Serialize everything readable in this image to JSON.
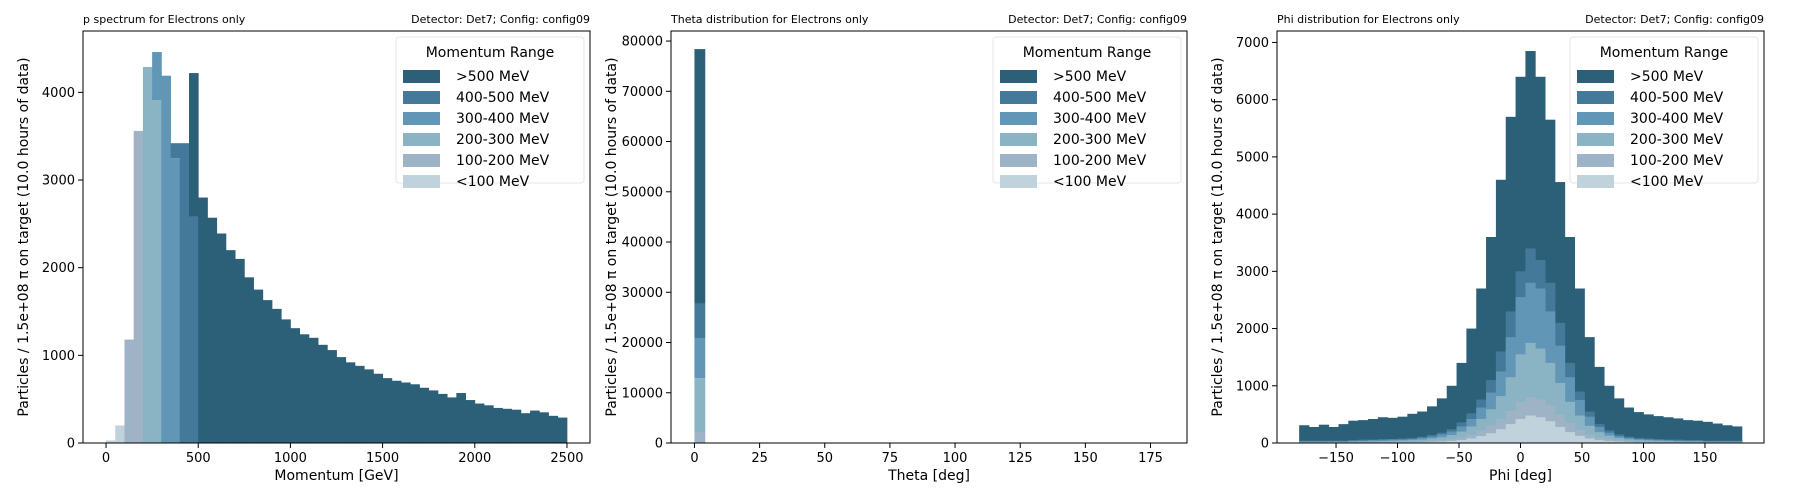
{
  "colors": {
    ">500 MeV": "#2c5f78",
    "400-500 MeV": "#44799a",
    "300-400 MeV": "#6196b6",
    "200-300 MeV": "#8ab3c4",
    "100-200 MeV": "#9fb3c6",
    "<100 MeV": "#c0d2dc"
  },
  "chart_data": [
    {
      "type": "bar",
      "stacked": true,
      "title_left": "p spectrum for Electrons only",
      "title_right": "Detector: Det7; Config: config09",
      "xlabel": "Momentum [GeV]",
      "ylabel": "Particles / 1.5e+08 π on target (10.0 hours of data)",
      "xlim": [
        -125,
        2625
      ],
      "ylim": [
        0,
        4700
      ],
      "xticks": [
        0,
        500,
        1000,
        1500,
        2000,
        2500
      ],
      "yticks": [
        0,
        1000,
        2000,
        3000,
        4000
      ],
      "legend": {
        "title": "Momentum Range",
        "position": "top-right"
      },
      "bin_width": 50,
      "bin_starts": [
        0,
        50,
        100,
        150,
        200,
        250,
        300,
        350,
        400,
        450,
        500,
        550,
        600,
        650,
        700,
        750,
        800,
        850,
        900,
        950,
        1000,
        1050,
        1100,
        1150,
        1200,
        1250,
        1300,
        1350,
        1400,
        1450,
        1500,
        1550,
        1600,
        1650,
        1700,
        1750,
        1800,
        1850,
        1900,
        1950,
        2000,
        2050,
        2100,
        2150,
        2200,
        2250,
        2300,
        2350,
        2400,
        2450
      ],
      "series": [
        {
          "name": "<100 MeV",
          "values": [
            30,
            200,
            0,
            0,
            0,
            0,
            0,
            0,
            0,
            0,
            0,
            0,
            0,
            0,
            0,
            0,
            0,
            0,
            0,
            0,
            0,
            0,
            0,
            0,
            0,
            0,
            0,
            0,
            0,
            0,
            0,
            0,
            0,
            0,
            0,
            0,
            0,
            0,
            0,
            0,
            0,
            0,
            0,
            0,
            0,
            0,
            0,
            0,
            0,
            0
          ]
        },
        {
          "name": "100-200 MeV",
          "values": [
            0,
            0,
            1180,
            3560,
            0,
            0,
            0,
            0,
            0,
            0,
            0,
            0,
            0,
            0,
            0,
            0,
            0,
            0,
            0,
            0,
            0,
            0,
            0,
            0,
            0,
            0,
            0,
            0,
            0,
            0,
            0,
            0,
            0,
            0,
            0,
            0,
            0,
            0,
            0,
            0,
            0,
            0,
            0,
            0,
            0,
            0,
            0,
            0,
            0,
            0
          ]
        },
        {
          "name": "200-300 MeV",
          "values": [
            0,
            0,
            0,
            0,
            4290,
            3910,
            0,
            0,
            0,
            0,
            0,
            0,
            0,
            0,
            0,
            0,
            0,
            0,
            0,
            0,
            0,
            0,
            0,
            0,
            0,
            0,
            0,
            0,
            0,
            0,
            0,
            0,
            0,
            0,
            0,
            0,
            0,
            0,
            0,
            0,
            0,
            0,
            0,
            0,
            0,
            0,
            0,
            0,
            0,
            0
          ]
        },
        {
          "name": "300-400 MeV",
          "values": [
            0,
            0,
            0,
            0,
            0,
            550,
            4190,
            3250,
            0,
            0,
            0,
            0,
            0,
            0,
            0,
            0,
            0,
            0,
            0,
            0,
            0,
            0,
            0,
            0,
            0,
            0,
            0,
            0,
            0,
            0,
            0,
            0,
            0,
            0,
            0,
            0,
            0,
            0,
            0,
            0,
            0,
            0,
            0,
            0,
            0,
            0,
            0,
            0,
            0,
            0
          ]
        },
        {
          "name": "400-500 MeV",
          "values": [
            0,
            0,
            0,
            0,
            0,
            0,
            0,
            170,
            3420,
            2580,
            0,
            0,
            0,
            0,
            0,
            0,
            0,
            0,
            0,
            0,
            0,
            0,
            0,
            0,
            0,
            0,
            0,
            0,
            0,
            0,
            0,
            0,
            0,
            0,
            0,
            0,
            0,
            0,
            0,
            0,
            0,
            0,
            0,
            0,
            0,
            0,
            0,
            0,
            0,
            0
          ]
        },
        {
          "name": ">500 MeV",
          "values": [
            0,
            0,
            0,
            0,
            0,
            0,
            0,
            0,
            0,
            1640,
            2800,
            2570,
            2390,
            2200,
            2100,
            1890,
            1750,
            1630,
            1530,
            1410,
            1310,
            1240,
            1200,
            1120,
            1060,
            980,
            920,
            880,
            840,
            790,
            740,
            710,
            690,
            670,
            630,
            600,
            560,
            520,
            570,
            490,
            450,
            430,
            400,
            390,
            380,
            340,
            370,
            350,
            310,
            290
          ]
        }
      ]
    },
    {
      "type": "bar",
      "stacked": true,
      "title_left": "Theta distribution for Electrons only",
      "title_right": "Detector: Det7; Config: config09",
      "xlabel": "Theta [deg]",
      "ylabel": "Particles / 1.5e+08 π on target (10.0 hours of data)",
      "xlim": [
        -9,
        189
      ],
      "ylim": [
        0,
        82000
      ],
      "xticks": [
        0,
        25,
        50,
        75,
        100,
        125,
        150,
        175
      ],
      "yticks": [
        0,
        10000,
        20000,
        30000,
        40000,
        50000,
        60000,
        70000,
        80000
      ],
      "legend": {
        "title": "Momentum Range",
        "position": "top-right"
      },
      "bin_width": 4,
      "bin_starts": [
        0
      ],
      "series": [
        {
          "name": "<100 MeV",
          "values": [
            100
          ]
        },
        {
          "name": "100-200 MeV",
          "values": [
            2000
          ]
        },
        {
          "name": "200-300 MeV",
          "values": [
            10800
          ]
        },
        {
          "name": "300-400 MeV",
          "values": [
            8000
          ]
        },
        {
          "name": "400-500 MeV",
          "values": [
            6800
          ]
        },
        {
          "name": ">500 MeV",
          "values": [
            50700
          ]
        }
      ]
    },
    {
      "type": "bar",
      "stacked": false,
      "title_left": "Phi distribution for Electrons only",
      "title_right": "Detector: Det7; Config: config09",
      "xlabel": "Phi [deg]",
      "ylabel": "Particles / 1.5e+08 π on target (10.0 hours of data)",
      "xlim": [
        -198,
        198
      ],
      "ylim": [
        0,
        7200
      ],
      "xticks": [
        -150,
        -100,
        -50,
        0,
        50,
        100,
        150
      ],
      "yticks": [
        0,
        1000,
        2000,
        3000,
        4000,
        5000,
        6000,
        7000
      ],
      "legend": {
        "title": "Momentum Range",
        "position": "top-right"
      },
      "bin_width": 8,
      "bin_starts": [
        -180,
        -172,
        -164,
        -156,
        -148,
        -140,
        -132,
        -124,
        -116,
        -108,
        -100,
        -92,
        -84,
        -76,
        -68,
        -60,
        -52,
        -44,
        -36,
        -28,
        -20,
        -12,
        -4,
        4,
        12,
        20,
        28,
        36,
        44,
        52,
        60,
        68,
        76,
        84,
        92,
        100,
        108,
        116,
        124,
        132,
        140,
        148,
        156,
        164,
        172
      ],
      "series": [
        {
          "name": ">500 MeV",
          "values": [
            310,
            280,
            320,
            280,
            330,
            390,
            400,
            420,
            450,
            440,
            460,
            510,
            550,
            640,
            780,
            1000,
            1400,
            2000,
            2700,
            3600,
            4600,
            5700,
            6400,
            6850,
            6400,
            5650,
            4560,
            3600,
            2700,
            1850,
            1330,
            1000,
            780,
            620,
            540,
            500,
            470,
            450,
            430,
            400,
            390,
            370,
            340,
            310,
            290
          ]
        },
        {
          "name": "400-500 MeV",
          "values": [
            40,
            40,
            40,
            40,
            40,
            50,
            60,
            60,
            70,
            70,
            80,
            90,
            110,
            140,
            180,
            240,
            360,
            520,
            760,
            1100,
            1600,
            2300,
            3000,
            3400,
            3200,
            2800,
            2100,
            1400,
            900,
            550,
            330,
            220,
            150,
            110,
            90,
            80,
            70,
            60,
            60,
            50,
            50,
            40,
            40,
            40,
            40
          ]
        },
        {
          "name": "300-400 MeV",
          "values": [
            30,
            30,
            30,
            30,
            30,
            40,
            40,
            50,
            50,
            60,
            60,
            70,
            90,
            110,
            150,
            200,
            290,
            420,
            620,
            880,
            1250,
            1850,
            2550,
            2800,
            2700,
            2300,
            1700,
            1150,
            750,
            460,
            280,
            180,
            120,
            90,
            70,
            60,
            50,
            50,
            40,
            40,
            40,
            30,
            30,
            30,
            30
          ]
        },
        {
          "name": "200-300 MeV",
          "values": [
            20,
            20,
            20,
            20,
            20,
            25,
            30,
            30,
            35,
            40,
            45,
            50,
            60,
            80,
            100,
            140,
            200,
            290,
            420,
            590,
            820,
            1150,
            1550,
            1750,
            1650,
            1400,
            1050,
            720,
            480,
            300,
            190,
            130,
            90,
            65,
            50,
            45,
            40,
            35,
            30,
            25,
            25,
            20,
            20,
            20,
            20
          ]
        },
        {
          "name": "100-200 MeV",
          "values": [
            10,
            10,
            10,
            10,
            10,
            12,
            14,
            15,
            17,
            20,
            22,
            25,
            30,
            40,
            50,
            70,
            100,
            150,
            220,
            310,
            420,
            560,
            720,
            800,
            760,
            660,
            500,
            350,
            230,
            150,
            95,
            65,
            45,
            32,
            25,
            22,
            20,
            17,
            15,
            12,
            12,
            10,
            10,
            10,
            10
          ]
        },
        {
          "name": "<100 MeV",
          "values": [
            5,
            5,
            5,
            5,
            5,
            6,
            7,
            8,
            9,
            10,
            11,
            12,
            15,
            20,
            26,
            36,
            52,
            80,
            120,
            170,
            240,
            330,
            420,
            480,
            450,
            380,
            280,
            190,
            125,
            80,
            50,
            34,
            24,
            17,
            13,
            11,
            10,
            9,
            8,
            6,
            6,
            5,
            5,
            5,
            5
          ]
        }
      ]
    }
  ],
  "legend_order": [
    ">500 MeV",
    "400-500 MeV",
    "300-400 MeV",
    "200-300 MeV",
    "100-200 MeV",
    "<100 MeV"
  ]
}
